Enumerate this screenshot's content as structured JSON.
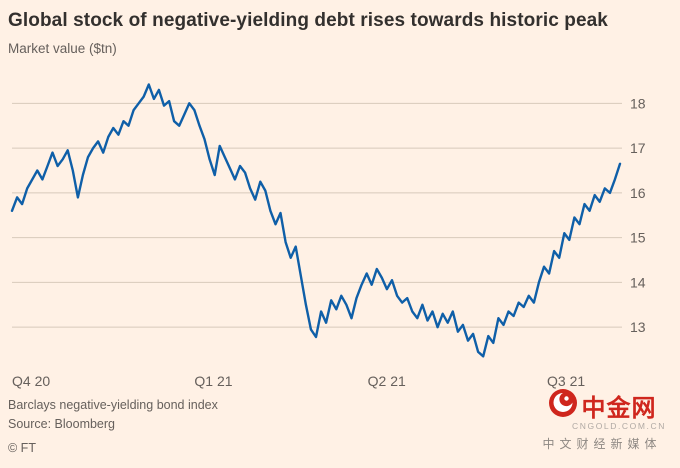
{
  "header": {
    "title": "Global stock of negative-yielding debt rises towards historic peak",
    "subtitle": "Market value ($tn)"
  },
  "footer": {
    "note": "Barclays negative-yielding bond index",
    "source": "Source: Bloomberg",
    "copyright": "© FT"
  },
  "watermark": {
    "name_cn": "中金网",
    "domain": "CNGOLD.COM.CN",
    "tagline": "中文财经新媒体"
  },
  "colors": {
    "background": "#fff1e5",
    "line": "#0f5fa8",
    "grid": "#d8cabb",
    "axis_text": "#66605c",
    "title_text": "#33302e",
    "watermark_red": "#cf261d"
  },
  "chart_data": {
    "type": "line",
    "title": "Global stock of negative-yielding debt rises towards historic peak",
    "ylabel": "Market value ($tn)",
    "xlabel": "",
    "grid": "horizontal only",
    "legend": "none",
    "y_axis_side": "right",
    "yticks": [
      13,
      14,
      15,
      16,
      17,
      18
    ],
    "ylim": [
      12.2,
      18.7
    ],
    "x_axis": {
      "labels": [
        "Q4 20",
        "Q1 21",
        "Q2 21",
        "Q3 21"
      ],
      "fractions": [
        0.0,
        0.3,
        0.585,
        0.88
      ]
    },
    "series": [
      {
        "name": "Barclays negative-yielding bond index",
        "values": [
          15.6,
          15.9,
          15.75,
          16.1,
          16.3,
          16.5,
          16.3,
          16.6,
          16.9,
          16.6,
          16.75,
          16.95,
          16.5,
          15.9,
          16.4,
          16.8,
          17.0,
          17.15,
          16.9,
          17.25,
          17.45,
          17.3,
          17.6,
          17.5,
          17.85,
          18.0,
          18.15,
          18.42,
          18.1,
          18.3,
          17.95,
          18.05,
          17.6,
          17.5,
          17.75,
          18.0,
          17.85,
          17.5,
          17.2,
          16.75,
          16.4,
          17.05,
          16.8,
          16.55,
          16.3,
          16.6,
          16.45,
          16.1,
          15.85,
          16.25,
          16.05,
          15.6,
          15.3,
          15.55,
          14.9,
          14.55,
          14.8,
          14.15,
          13.5,
          12.95,
          12.78,
          13.35,
          13.1,
          13.6,
          13.4,
          13.7,
          13.5,
          13.2,
          13.65,
          13.95,
          14.2,
          13.95,
          14.3,
          14.1,
          13.85,
          14.05,
          13.7,
          13.55,
          13.65,
          13.35,
          13.2,
          13.5,
          13.15,
          13.35,
          13.0,
          13.3,
          13.1,
          13.35,
          12.9,
          13.05,
          12.7,
          12.85,
          12.45,
          12.35,
          12.8,
          12.65,
          13.2,
          13.05,
          13.35,
          13.25,
          13.55,
          13.45,
          13.7,
          13.55,
          14.0,
          14.35,
          14.2,
          14.7,
          14.55,
          15.1,
          14.95,
          15.45,
          15.3,
          15.75,
          15.6,
          15.95,
          15.8,
          16.1,
          16.0,
          16.3,
          16.65
        ]
      }
    ]
  }
}
